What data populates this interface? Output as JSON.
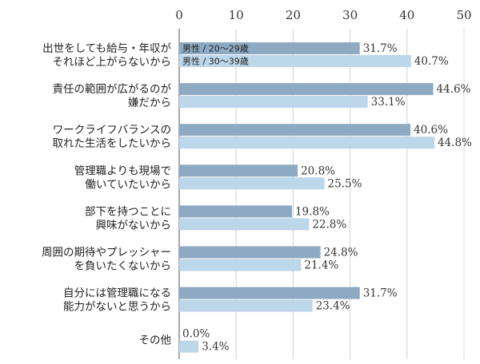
{
  "chart_data": {
    "type": "bar",
    "orientation": "horizontal",
    "title": "",
    "xlabel": "",
    "ylabel": "",
    "xlim": [
      0,
      50
    ],
    "ticks": [
      0,
      10,
      20,
      30,
      40,
      50
    ],
    "grid": true,
    "legend_placement": "inside first group bars",
    "categories": [
      [
        "出世をしても給与・年収が",
        "それほど上がらないから"
      ],
      [
        "責任の範囲が広がるのが",
        "嫌だから"
      ],
      [
        "ワークライフバランスの",
        "取れた生活をしたいから"
      ],
      [
        "管理職よりも現場で",
        "働いていたいから"
      ],
      [
        "部下を持つことに",
        "興味がないから"
      ],
      [
        "周囲の期待やプレッシャー",
        "を負いたくないから"
      ],
      [
        "自分には管理職になる",
        "能力がないと思うから"
      ],
      [
        "その他"
      ]
    ],
    "series": [
      {
        "name": "男性 / 20〜29歳",
        "color": "#8eaac2",
        "values": [
          31.7,
          44.6,
          40.6,
          20.8,
          19.8,
          24.8,
          31.7,
          0.0
        ],
        "labels": [
          "31.7%",
          "44.6%",
          "40.6%",
          "20.8%",
          "19.8%",
          "24.8%",
          "31.7%",
          "0.0%"
        ]
      },
      {
        "name": "男性 / 30〜39歳",
        "color": "#bcd6ea",
        "values": [
          40.7,
          33.1,
          44.8,
          25.5,
          22.8,
          21.4,
          23.4,
          3.4
        ],
        "labels": [
          "40.7%",
          "33.1%",
          "44.8%",
          "25.5%",
          "22.8%",
          "21.4%",
          "23.4%",
          "3.4%"
        ]
      }
    ]
  }
}
